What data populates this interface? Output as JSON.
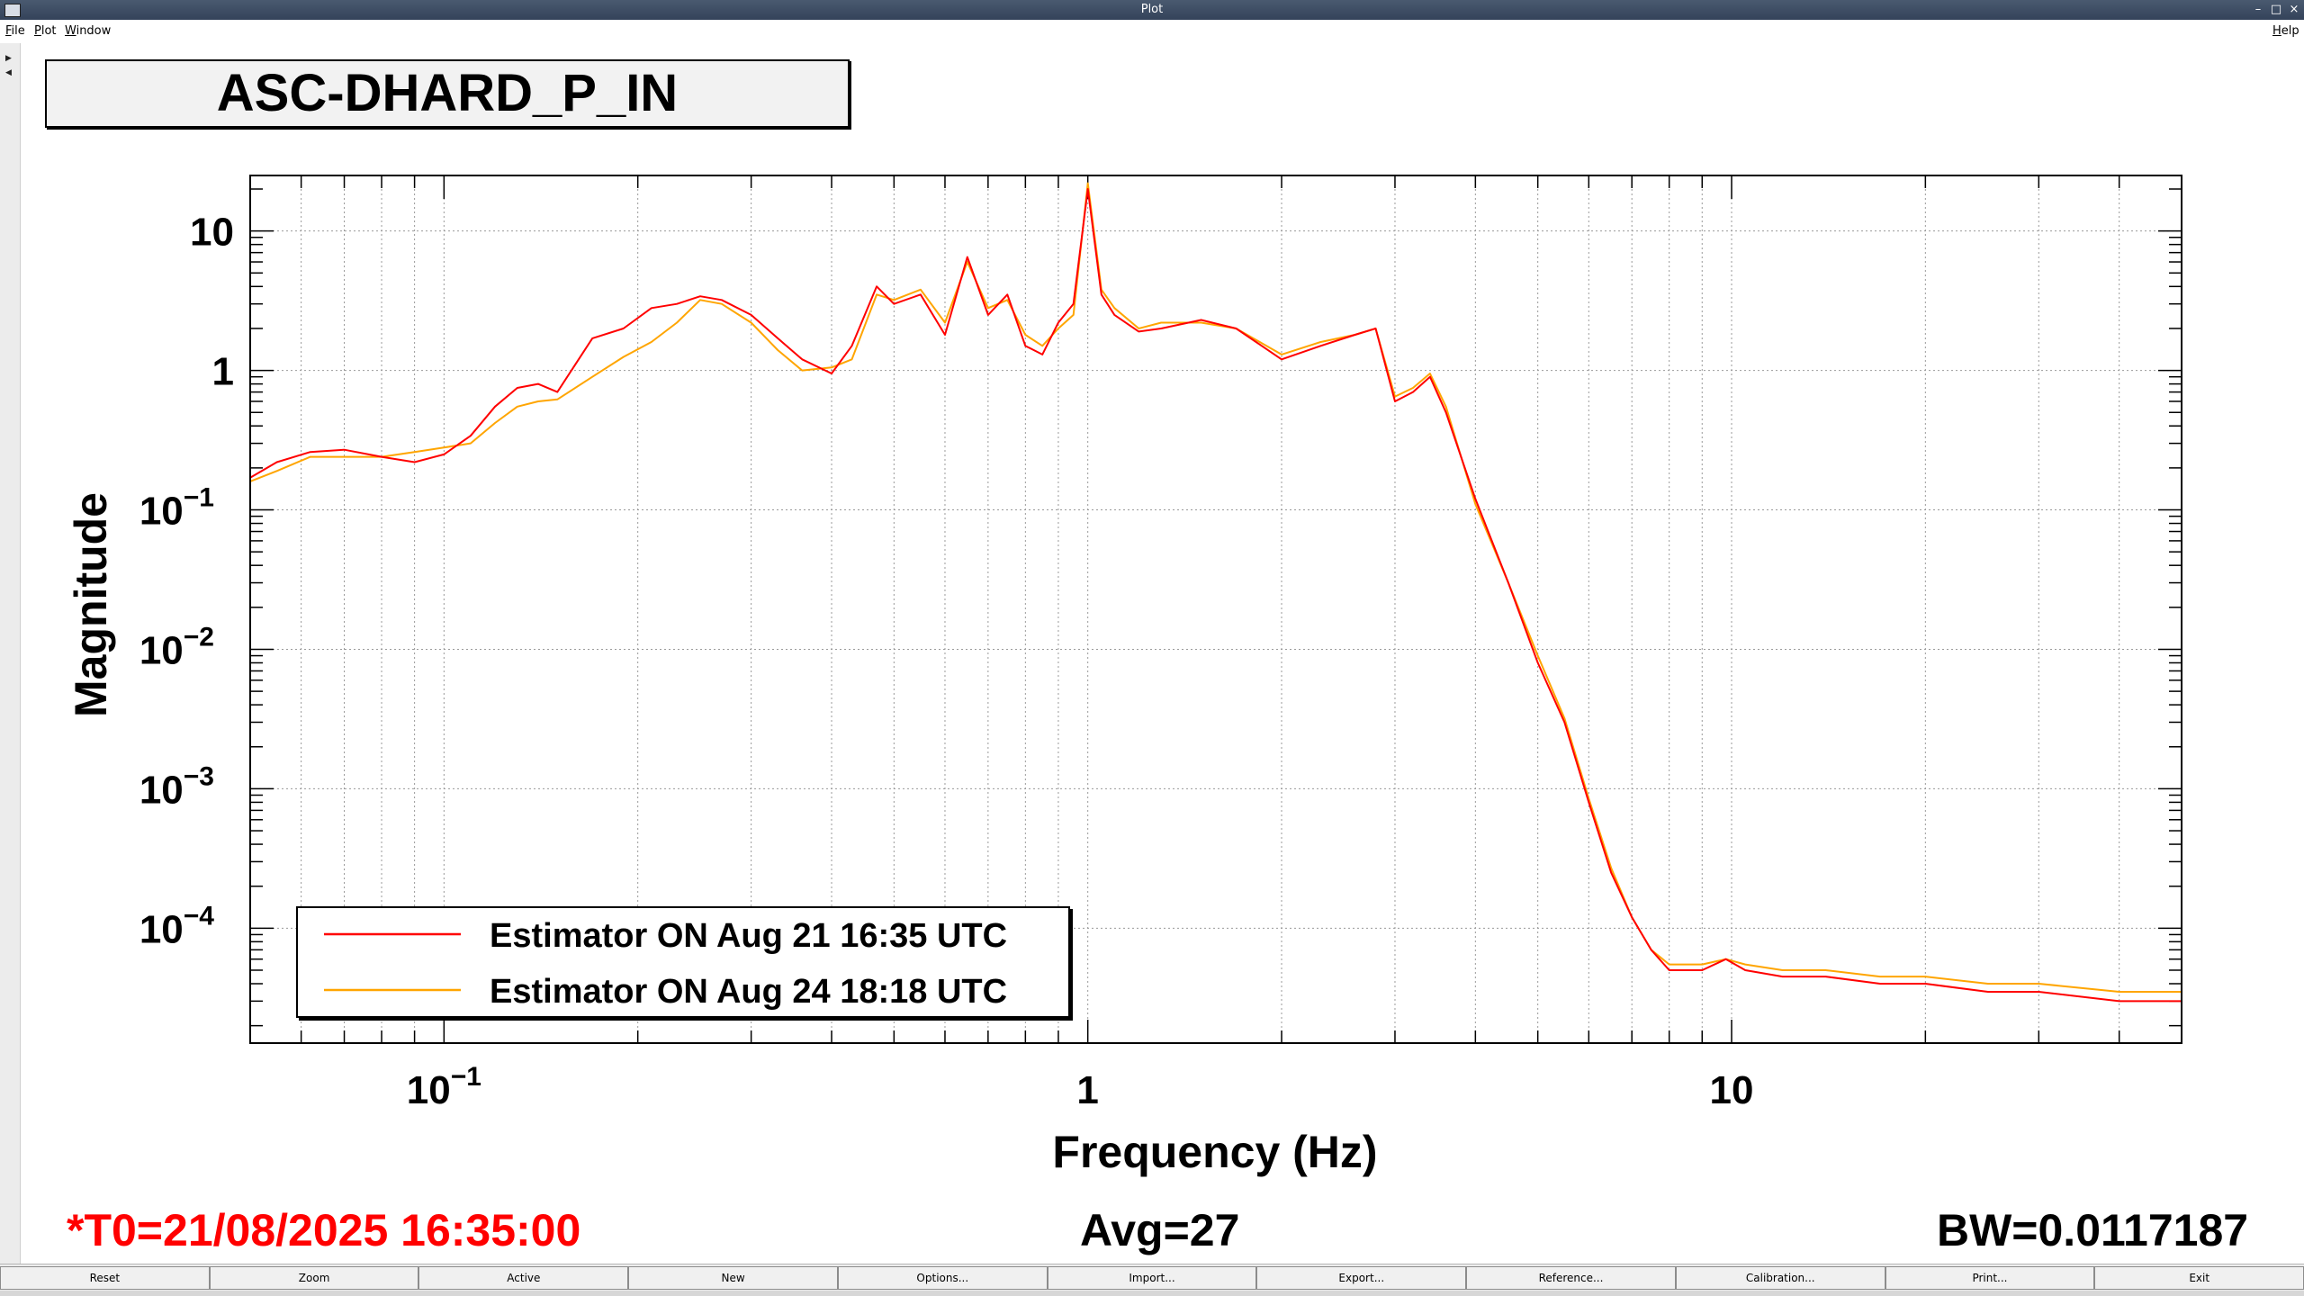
{
  "window": {
    "title": "Plot",
    "controls": [
      "–",
      "□",
      "×"
    ]
  },
  "menu": {
    "items": [
      "File",
      "Plot",
      "Window"
    ],
    "help": "Help"
  },
  "plot": {
    "title": "ASC-DHARD_P_IN",
    "footer": {
      "t0": "*T0=21/08/2025 16:35:00",
      "avg": "Avg=27",
      "bw": "BW=0.0117187"
    },
    "colors": {
      "trace1": "#ff0000",
      "trace2": "#ffa500",
      "t0_text": "#ff0000"
    }
  },
  "chart_data": {
    "type": "line",
    "title": "ASC-DHARD_P_IN",
    "xlabel": "Frequency (Hz)",
    "ylabel": "Magnitude",
    "xscale": "log",
    "yscale": "log",
    "xlim": [
      0.05,
      50
    ],
    "ylim": [
      1.5e-05,
      25
    ],
    "grid": true,
    "x_ticks": [
      {
        "value": 0.1,
        "base": "10",
        "exp": "−1"
      },
      {
        "value": 1,
        "base": "1",
        "exp": ""
      },
      {
        "value": 10,
        "base": "10",
        "exp": ""
      }
    ],
    "y_ticks": [
      {
        "value": 10,
        "base": "10",
        "exp": ""
      },
      {
        "value": 1,
        "base": "1",
        "exp": ""
      },
      {
        "value": 0.1,
        "base": "10",
        "exp": "−1"
      },
      {
        "value": 0.01,
        "base": "10",
        "exp": "−2"
      },
      {
        "value": 0.001,
        "base": "10",
        "exp": "−3"
      },
      {
        "value": 0.0001,
        "base": "10",
        "exp": "−4"
      }
    ],
    "legend_position": "bottom-left",
    "series": [
      {
        "name": "Estimator ON Aug 21 16:35 UTC",
        "color": "#ff0000",
        "x": [
          0.05,
          0.055,
          0.062,
          0.07,
          0.08,
          0.09,
          0.1,
          0.11,
          0.12,
          0.13,
          0.14,
          0.15,
          0.17,
          0.19,
          0.21,
          0.23,
          0.25,
          0.27,
          0.3,
          0.33,
          0.36,
          0.4,
          0.43,
          0.47,
          0.5,
          0.55,
          0.6,
          0.65,
          0.7,
          0.75,
          0.8,
          0.85,
          0.9,
          0.95,
          1.0,
          1.05,
          1.1,
          1.2,
          1.3,
          1.5,
          1.7,
          2.0,
          2.3,
          2.6,
          2.8,
          3.0,
          3.2,
          3.4,
          3.6,
          4.0,
          4.5,
          5.0,
          5.5,
          6.0,
          6.5,
          7.0,
          7.5,
          8.0,
          9.0,
          9.8,
          10.5,
          12,
          14,
          17,
          20,
          25,
          30,
          40,
          50
        ],
        "y": [
          0.17,
          0.22,
          0.26,
          0.27,
          0.24,
          0.22,
          0.25,
          0.34,
          0.55,
          0.75,
          0.8,
          0.7,
          1.7,
          2.0,
          2.8,
          3.0,
          3.4,
          3.2,
          2.5,
          1.7,
          1.2,
          0.95,
          1.5,
          4.0,
          3.0,
          3.5,
          1.8,
          6.5,
          2.5,
          3.5,
          1.5,
          1.3,
          2.2,
          3.0,
          20,
          3.5,
          2.5,
          1.9,
          2.0,
          2.3,
          2.0,
          1.2,
          1.5,
          1.8,
          2.0,
          0.6,
          0.7,
          0.9,
          0.5,
          0.12,
          0.03,
          0.008,
          0.003,
          0.0008,
          0.00025,
          0.00012,
          7e-05,
          5e-05,
          5e-05,
          6e-05,
          5e-05,
          4.5e-05,
          4.5e-05,
          4e-05,
          4e-05,
          3.5e-05,
          3.5e-05,
          3e-05,
          3e-05
        ]
      },
      {
        "name": "Estimator ON Aug 24 18:18 UTC",
        "color": "#ffa500",
        "x": [
          0.05,
          0.055,
          0.062,
          0.07,
          0.08,
          0.09,
          0.1,
          0.11,
          0.12,
          0.13,
          0.14,
          0.15,
          0.17,
          0.19,
          0.21,
          0.23,
          0.25,
          0.27,
          0.3,
          0.33,
          0.36,
          0.4,
          0.43,
          0.47,
          0.5,
          0.55,
          0.6,
          0.65,
          0.7,
          0.75,
          0.8,
          0.85,
          0.9,
          0.95,
          1.0,
          1.05,
          1.1,
          1.2,
          1.3,
          1.5,
          1.7,
          2.0,
          2.3,
          2.6,
          2.8,
          3.0,
          3.2,
          3.4,
          3.6,
          4.0,
          4.5,
          5.0,
          5.5,
          6.0,
          6.5,
          7.0,
          7.5,
          8.0,
          9.0,
          9.8,
          10.5,
          12,
          14,
          17,
          20,
          25,
          30,
          40,
          50
        ],
        "y": [
          0.16,
          0.19,
          0.24,
          0.24,
          0.24,
          0.26,
          0.28,
          0.3,
          0.42,
          0.55,
          0.6,
          0.62,
          0.9,
          1.25,
          1.6,
          2.2,
          3.2,
          3.0,
          2.2,
          1.4,
          1.0,
          1.05,
          1.2,
          3.5,
          3.2,
          3.8,
          2.2,
          6.0,
          2.8,
          3.2,
          1.8,
          1.5,
          2.0,
          2.5,
          22,
          3.8,
          2.8,
          2.0,
          2.2,
          2.2,
          2.0,
          1.3,
          1.6,
          1.8,
          2.0,
          0.65,
          0.75,
          0.95,
          0.55,
          0.11,
          0.03,
          0.009,
          0.0032,
          0.00085,
          0.00027,
          0.00012,
          7e-05,
          5.5e-05,
          5.5e-05,
          6e-05,
          5.5e-05,
          5e-05,
          5e-05,
          4.5e-05,
          4.5e-05,
          4e-05,
          4e-05,
          3.5e-05,
          3.5e-05
        ]
      }
    ]
  },
  "buttons": [
    "Reset",
    "Zoom",
    "Active",
    "New",
    "Options...",
    "Import...",
    "Export...",
    "Reference...",
    "Calibration...",
    "Print...",
    "Exit"
  ]
}
